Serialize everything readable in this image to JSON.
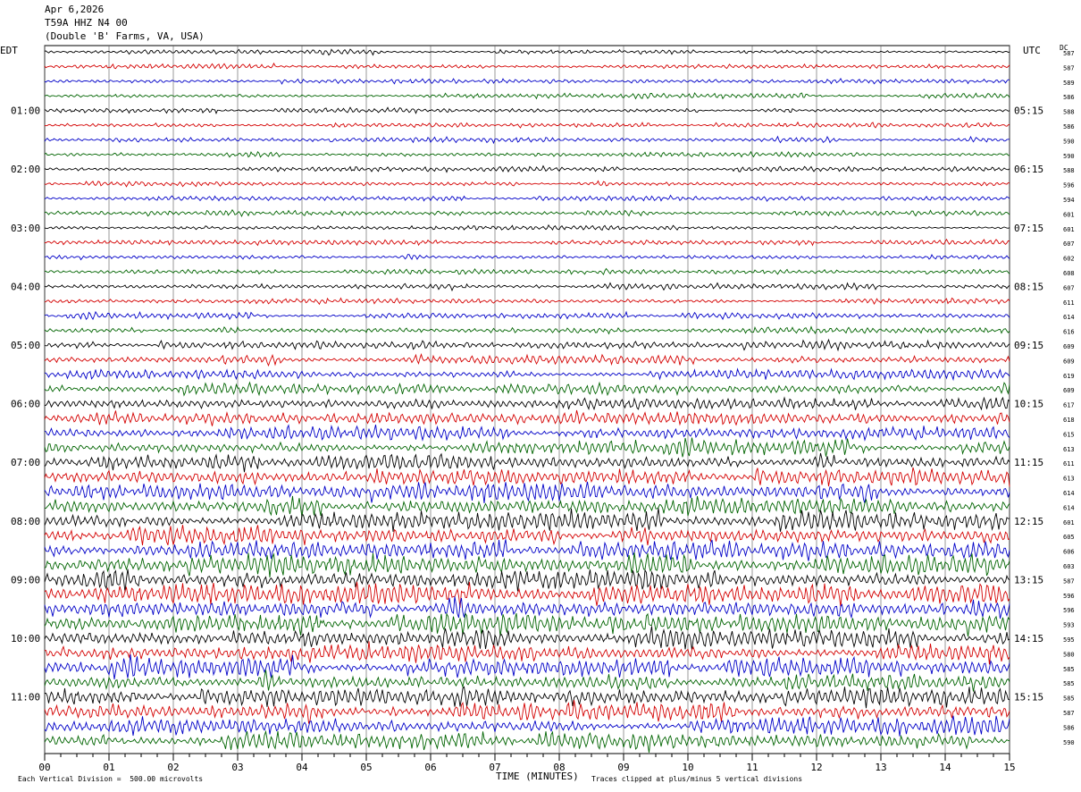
{
  "header": {
    "date": "Apr 6,2026",
    "station": "T59A HHZ N4 00",
    "location": "(Double 'B' Farms, VA, USA)"
  },
  "left_zone": "EDT",
  "right_zone": "UTC",
  "dc_header": "DC",
  "footer": {
    "scale": "Each Vertical Division =  500.00 microvolts",
    "clip": "Traces clipped at plus/minus 5 vertical divisions"
  },
  "chart_data": {
    "type": "line",
    "xlabel": "TIME (MINUTES)",
    "xlim": [
      0,
      15
    ],
    "x_ticks": [
      "00",
      "01",
      "02",
      "03",
      "04",
      "05",
      "06",
      "07",
      "08",
      "09",
      "10",
      "11",
      "12",
      "13",
      "14",
      "15"
    ],
    "trace_count": 48,
    "trace_colors": [
      "#000000",
      "#d40000",
      "#0000c8",
      "#006400"
    ],
    "left_hour_labels": [
      "01:00",
      "02:00",
      "03:00",
      "04:00",
      "05:00",
      "06:00",
      "07:00",
      "08:00",
      "09:00",
      "10:00",
      "11:00"
    ],
    "right_hour_labels": [
      "05:15",
      "06:15",
      "07:15",
      "08:15",
      "09:15",
      "10:15",
      "11:15",
      "12:15",
      "13:15",
      "14:15",
      "15:15"
    ],
    "dc_offsets": [
      "587",
      "587",
      "589",
      "586",
      "588",
      "586",
      "590",
      "590",
      "588",
      "596",
      "594",
      "601",
      "601",
      "607",
      "602",
      "608",
      "607",
      "611",
      "614",
      "616",
      "609",
      "609",
      "619",
      "609",
      "617",
      "618",
      "615",
      "613",
      "611",
      "613",
      "614",
      "614",
      "601",
      "605",
      "606",
      "603",
      "587",
      "596",
      "596",
      "593",
      "595",
      "580",
      "585",
      "585",
      "585",
      "587",
      "586",
      "590"
    ],
    "relative_amplitude": [
      1,
      1,
      1,
      1,
      1,
      1,
      1,
      1,
      1,
      1,
      1,
      1,
      1,
      1,
      1,
      1,
      1.2,
      1.2,
      1.2,
      1.4,
      1.6,
      1.8,
      2,
      2.2,
      2.5,
      2.6,
      2.8,
      3,
      3.2,
      3.5,
      3.6,
      3.8,
      3.8,
      3.8,
      3.9,
      4,
      4.1,
      4.2,
      4.2,
      4.1,
      4,
      3.9,
      3.8,
      3.7,
      3.6,
      3.6,
      3.6,
      3.6
    ]
  }
}
